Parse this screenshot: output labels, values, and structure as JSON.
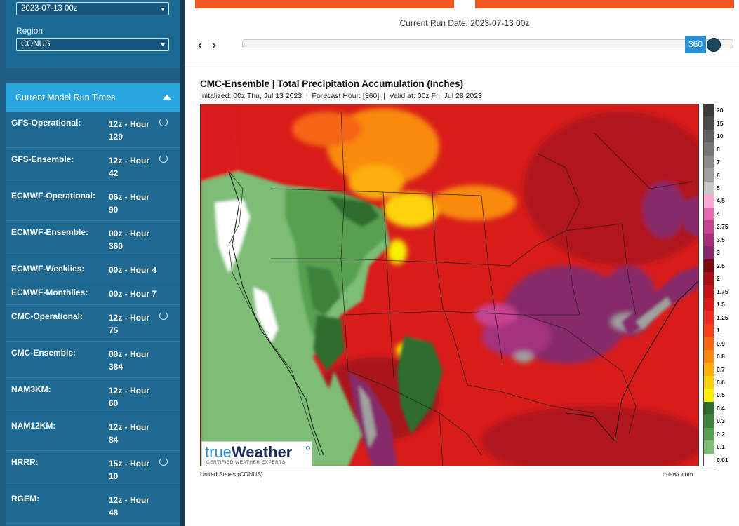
{
  "sidebar": {
    "run_select_value": "2023-07-13 00z",
    "region_label": "Region",
    "region_select_value": "CONUS",
    "runs_header": "Current Model Run Times",
    "runs": [
      {
        "name": "GFS-Operational:",
        "time": "12z - Hour 129",
        "loading": true
      },
      {
        "name": "GFS-Ensemble:",
        "time": "12z - Hour 42",
        "loading": true
      },
      {
        "name": "ECMWF-Operational:",
        "time": "06z - Hour 90",
        "loading": false
      },
      {
        "name": "ECMWF-Ensemble:",
        "time": "00z - Hour 360",
        "loading": false
      },
      {
        "name": "ECMWF-Weeklies:",
        "time": "00z - Hour 4",
        "loading": false
      },
      {
        "name": "ECMWF-Monthlies:",
        "time": "00z - Hour 7",
        "loading": false
      },
      {
        "name": "CMC-Operational:",
        "time": "12z - Hour 75",
        "loading": true
      },
      {
        "name": "CMC-Ensemble:",
        "time": "00z - Hour 384",
        "loading": false
      },
      {
        "name": "NAM3KM:",
        "time": "12z - Hour 60",
        "loading": false
      },
      {
        "name": "NAM12KM:",
        "time": "12z - Hour 84",
        "loading": false
      },
      {
        "name": "HRRR:",
        "time": "15z - Hour 10",
        "loading": true
      },
      {
        "name": "RGEM:",
        "time": "12z - Hour 48",
        "loading": false
      }
    ]
  },
  "header": {
    "run_date": "Current Run Date: 2023-07-13 00z",
    "slider_value": "360",
    "prev_icon": "chevron-left-icon",
    "next_icon": "chevron-right-icon"
  },
  "map": {
    "title": "CMC-Ensemble | Total Precipitation Accumulation (Inches)",
    "subtitle": "Initalized: 00z Thu, Jul 13 2023  |  Forecast Hour: [360]  |  Valid at: 00z Fri, Jul 28 2023",
    "region_caption": "United States (CONUS)",
    "site_caption": "truewx.com",
    "logo": {
      "word1": "true",
      "word2": "Weather",
      "tagline": "CERTIFIED WEATHER EXPERTS"
    }
  },
  "legend": [
    {
      "label": "20",
      "color": "#3a3a3a"
    },
    {
      "label": "15",
      "color": "#4d4d4d"
    },
    {
      "label": "10",
      "color": "#606060"
    },
    {
      "label": "8",
      "color": "#757575"
    },
    {
      "label": "7",
      "color": "#8a8a8a"
    },
    {
      "label": "6",
      "color": "#a0a0a0"
    },
    {
      "label": "5",
      "color": "#c8c8c8"
    },
    {
      "label": "4.5",
      "color": "#f7a9d3"
    },
    {
      "label": "4",
      "color": "#e56bb1"
    },
    {
      "label": "3.75",
      "color": "#c74391"
    },
    {
      "label": "3.5",
      "color": "#a5307d"
    },
    {
      "label": "3",
      "color": "#862a6a"
    },
    {
      "label": "2.5",
      "color": "#7a0a12"
    },
    {
      "label": "2",
      "color": "#a50f16"
    },
    {
      "label": "1.75",
      "color": "#c4141a"
    },
    {
      "label": "1.5",
      "color": "#df1a1c"
    },
    {
      "label": "1.25",
      "color": "#ee2a22"
    },
    {
      "label": "1",
      "color": "#f53e1a"
    },
    {
      "label": "0.9",
      "color": "#f76515"
    },
    {
      "label": "0.8",
      "color": "#f98a0f"
    },
    {
      "label": "0.7",
      "color": "#fbae0c"
    },
    {
      "label": "0.6",
      "color": "#fcd30a"
    },
    {
      "label": "0.5",
      "color": "#f8f000"
    },
    {
      "label": "0.4",
      "color": "#2f6d2f"
    },
    {
      "label": "0.3",
      "color": "#3d823b"
    },
    {
      "label": "0.2",
      "color": "#56a050"
    },
    {
      "label": "0.1",
      "color": "#7dbd76"
    },
    {
      "label": "0.01",
      "color": "#ffffff"
    }
  ]
}
